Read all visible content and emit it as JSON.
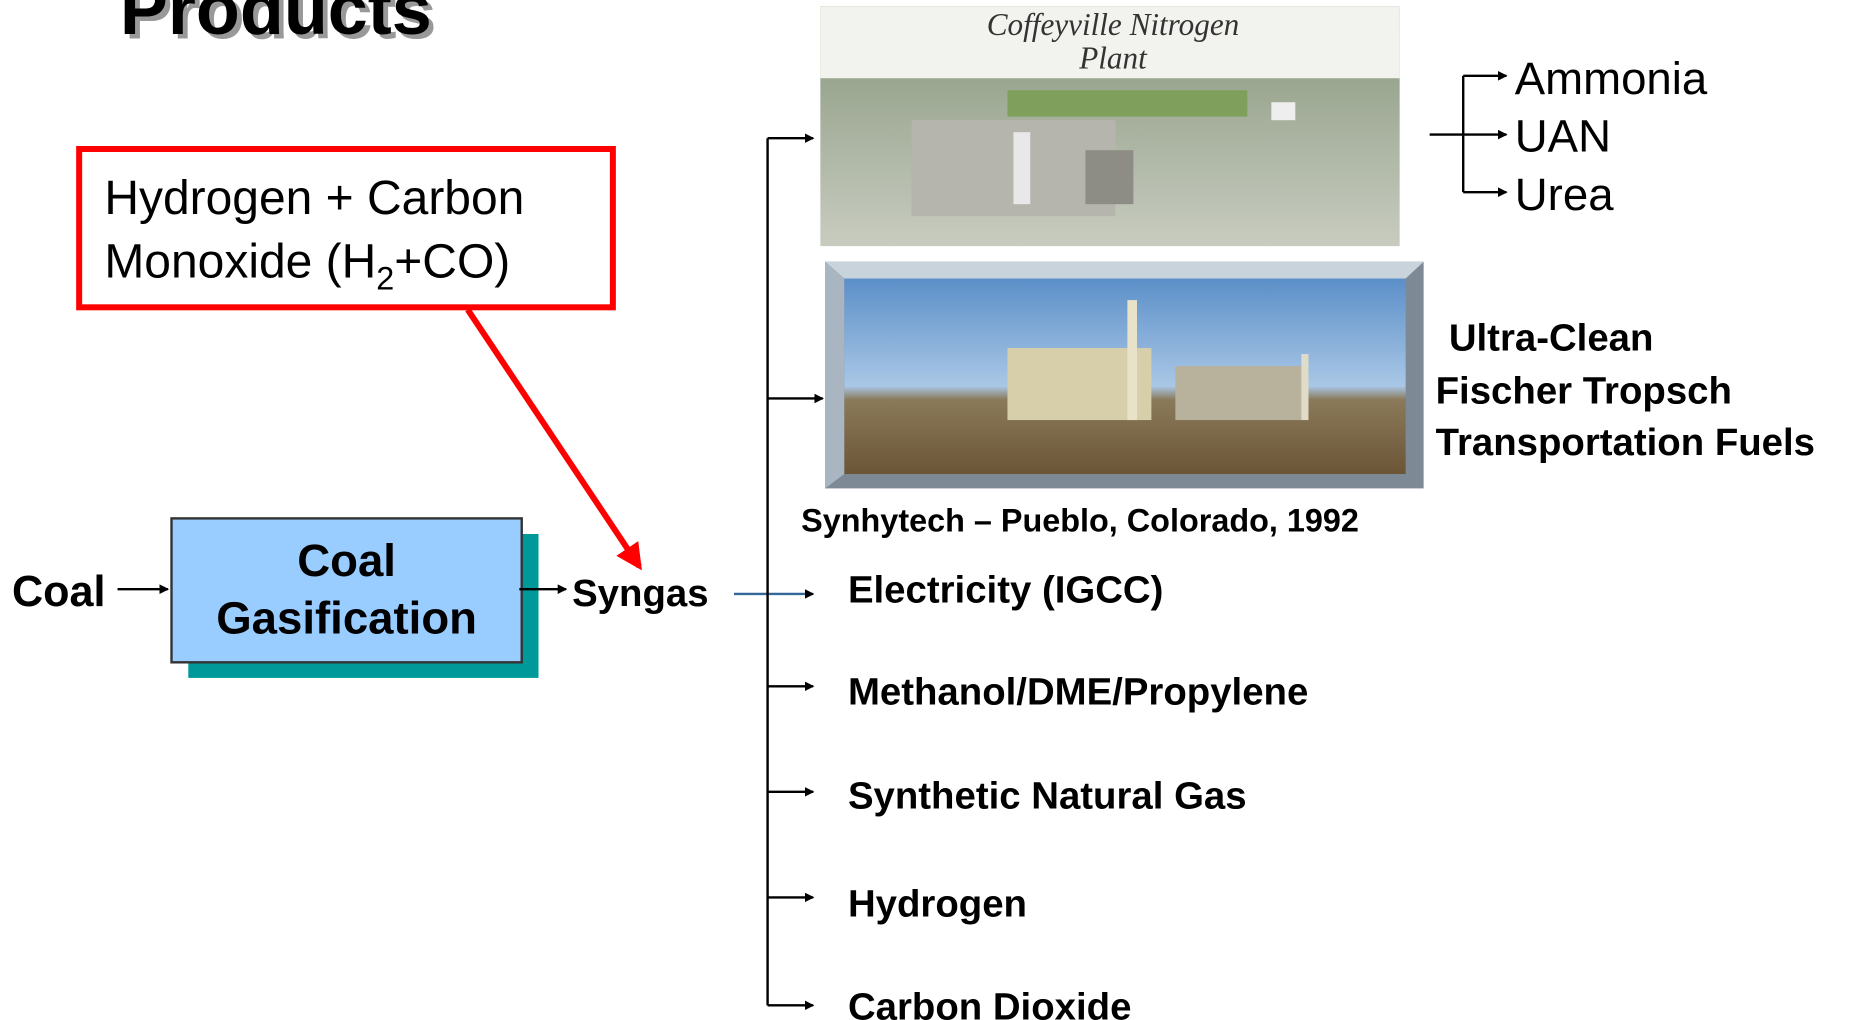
{
  "title": "Products",
  "callout": {
    "line1": "Hydrogen + Carbon",
    "line2": {
      "before": "Monoxide (H",
      "sub": "2",
      "after": "+CO)"
    }
  },
  "input": "Coal",
  "process": {
    "line1": "Coal",
    "line2": "Gasification"
  },
  "output": "Syngas",
  "images": [
    {
      "caption_line1": "Coffeyville Nitrogen",
      "caption_line2": "Plant",
      "products": [
        "Ammonia",
        "UAN",
        "Urea"
      ]
    },
    {
      "caption": "Synhytech – Pueblo, Colorado, 1992",
      "products": [
        "Ultra-Clean",
        "Fischer Tropsch",
        "Transportation Fuels"
      ]
    }
  ],
  "products": [
    "Electricity (IGCC)",
    "Methanol/DME/Propylene",
    "Synthetic Natural Gas",
    "Hydrogen",
    "Carbon Dioxide"
  ]
}
